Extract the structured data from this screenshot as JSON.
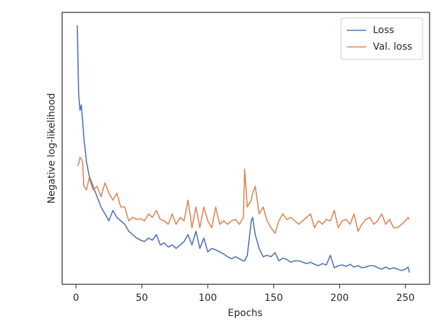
{
  "chart_data": {
    "type": "line",
    "xlabel": "Epochs",
    "ylabel": "Negative log-likelihood",
    "x": [
      1,
      2,
      3,
      4,
      5,
      6,
      8,
      10,
      13,
      16,
      19,
      22,
      25,
      28,
      31,
      34,
      37,
      40,
      43,
      46,
      49,
      52,
      55,
      58,
      61,
      64,
      67,
      70,
      73,
      76,
      79,
      82,
      85,
      88,
      91,
      94,
      97,
      100,
      103,
      106,
      109,
      112,
      115,
      118,
      121,
      124,
      127,
      128,
      130,
      133,
      134,
      136,
      139,
      142,
      145,
      148,
      151,
      154,
      157,
      160,
      163,
      166,
      169,
      172,
      175,
      178,
      181,
      184,
      187,
      190,
      193,
      196,
      199,
      202,
      205,
      208,
      211,
      214,
      217,
      220,
      223,
      226,
      229,
      232,
      235,
      238,
      241,
      244,
      247,
      250,
      252,
      253
    ],
    "series": [
      {
        "name": "Loss",
        "color": "#4c72b0",
        "values": [
          375,
          277,
          252,
          260,
          237,
          212,
          177,
          157,
          142,
          127,
          112,
          102,
          92,
          107,
          97,
          92,
          87,
          77,
          72,
          67,
          64,
          62,
          67,
          64,
          72,
          57,
          60,
          54,
          57,
          52,
          57,
          62,
          72,
          57,
          77,
          52,
          67,
          47,
          52,
          50,
          47,
          44,
          40,
          37,
          40,
          37,
          34,
          34,
          42,
          92,
          97,
          72,
          52,
          40,
          42,
          40,
          46,
          34,
          38,
          36,
          32,
          34,
          34,
          32,
          30,
          32,
          29,
          27,
          30,
          28,
          42,
          24,
          27,
          28,
          26,
          29,
          25,
          27,
          24,
          25,
          27,
          27,
          24,
          22,
          25,
          22,
          24,
          22,
          20,
          22,
          25,
          17
        ]
      },
      {
        "name": "Val. loss",
        "color": "#dd8452",
        "values": [
          172,
          174,
          184,
          182,
          177,
          142,
          137,
          154,
          137,
          142,
          127,
          147,
          132,
          122,
          132,
          112,
          112,
          92,
          97,
          94,
          95,
          92,
          102,
          97,
          107,
          94,
          92,
          87,
          102,
          87,
          97,
          92,
          122,
          82,
          112,
          82,
          112,
          92,
          82,
          112,
          87,
          92,
          87,
          92,
          94,
          87,
          97,
          167,
          112,
          122,
          132,
          142,
          102,
          112,
          92,
          82,
          74,
          92,
          102,
          94,
          97,
          92,
          87,
          92,
          97,
          102,
          82,
          92,
          87,
          94,
          92,
          107,
          82,
          92,
          94,
          87,
          102,
          77,
          87,
          94,
          97,
          87,
          92,
          102,
          87,
          94,
          82,
          82,
          87,
          92,
          97,
          94
        ]
      }
    ],
    "xlim": [
      -10.5,
      268.3
    ],
    "xticks": [
      0,
      50,
      100,
      150,
      200,
      250
    ],
    "ylim": [
      0,
      394
    ],
    "legend": "upper right"
  }
}
